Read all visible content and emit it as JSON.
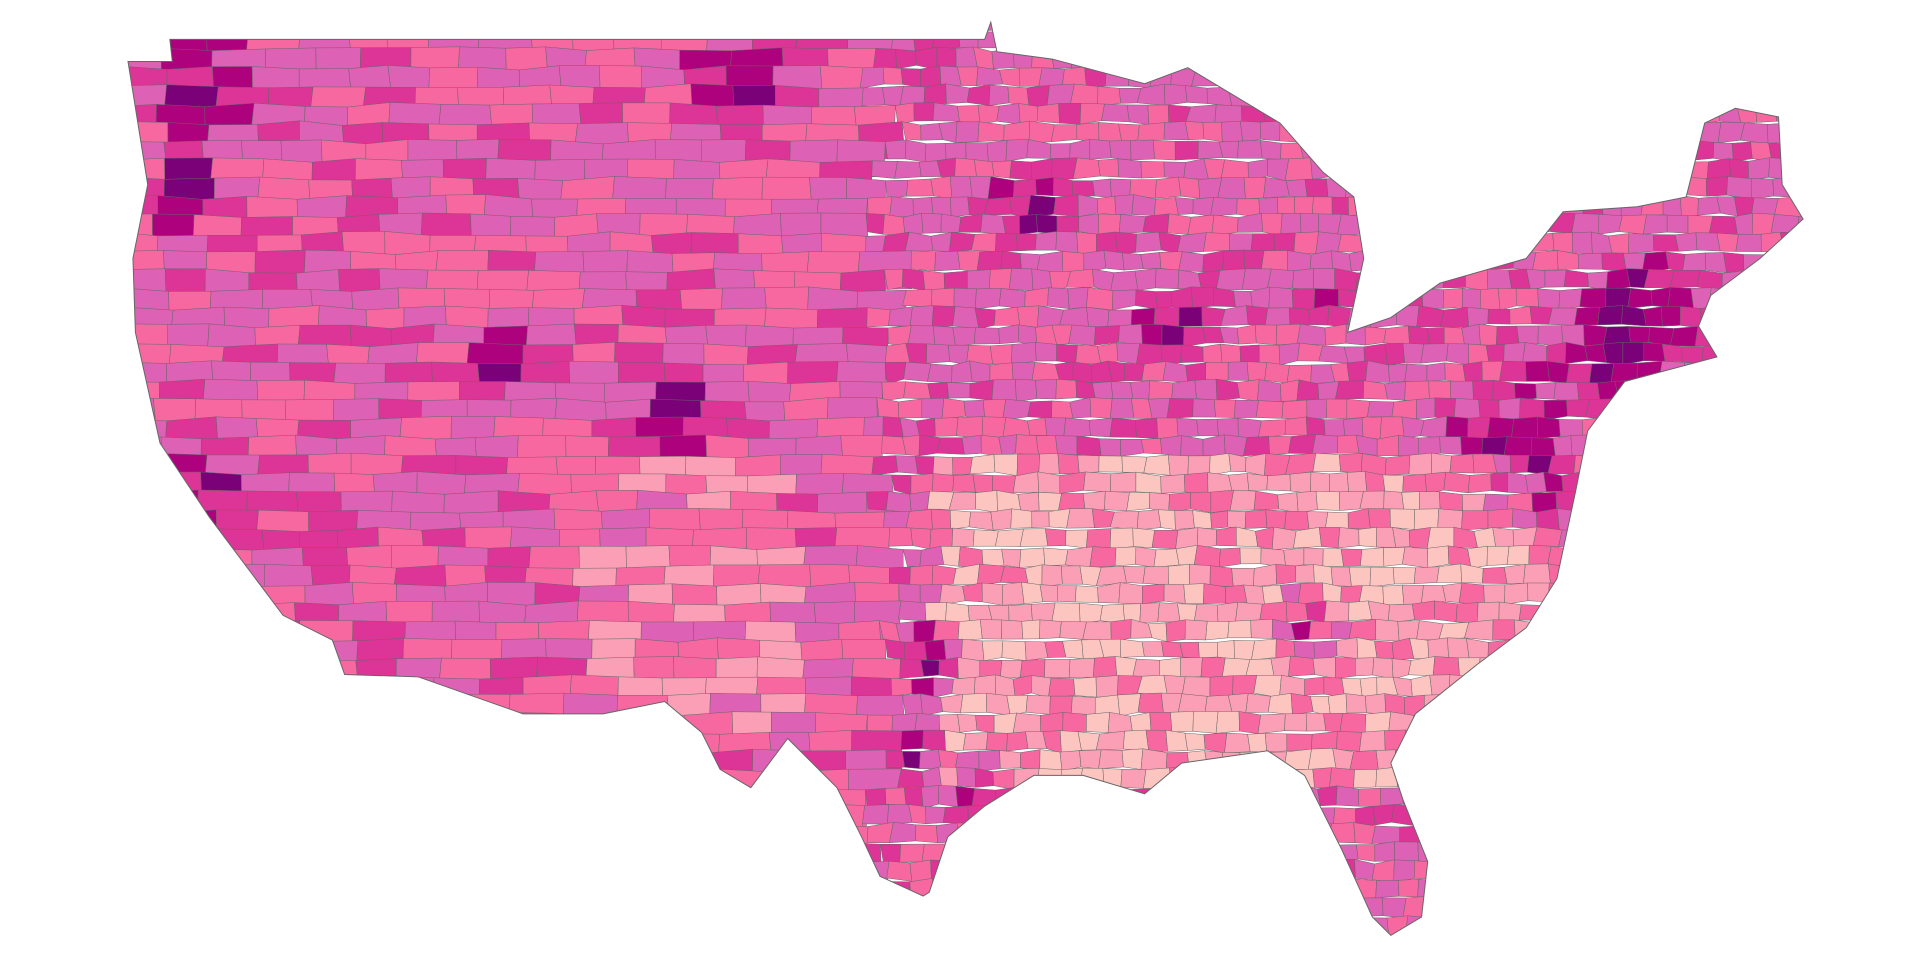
{
  "map": {
    "palette": [
      "#fcc5c0",
      "#fa9fb5",
      "#f768a1",
      "#dd61b4",
      "#dd3497",
      "#ae017e",
      "#7a0177"
    ],
    "border_color": "#666666"
  }
}
